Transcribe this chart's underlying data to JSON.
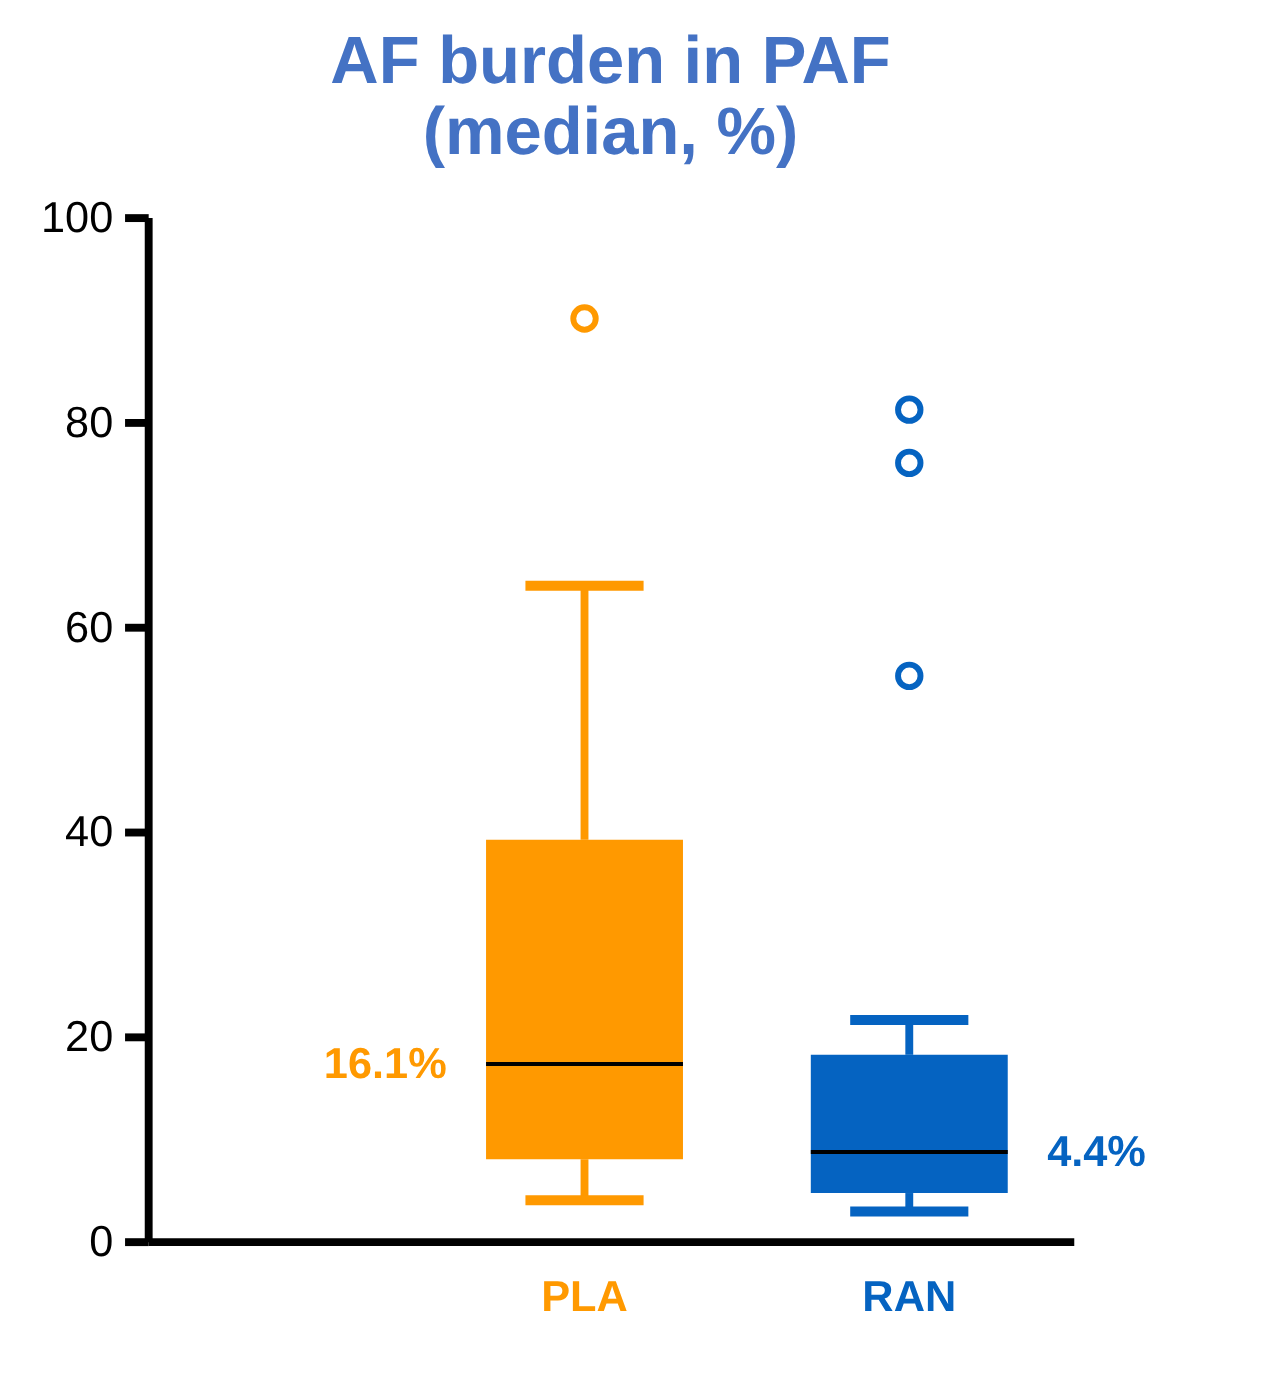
{
  "chart_data": {
    "type": "box",
    "title": [
      "AF burden in PAF",
      "(median, %)"
    ],
    "categories": [
      "PLA",
      "RAN"
    ],
    "colors": [
      "#ff9900",
      "#0563c1"
    ],
    "boxes": [
      {
        "low": 4.0,
        "q1": 8.0,
        "median": 17.3,
        "q3": 39.2,
        "high": 64.0,
        "outliers": [
          90.1
        ]
      },
      {
        "low": 2.9,
        "q1": 4.7,
        "median": 8.7,
        "q3": 18.2,
        "high": 21.6,
        "outliers": [
          81.2,
          76.0,
          55.2
        ]
      }
    ],
    "annotations": [
      "16.1%",
      "4.4%"
    ],
    "ylim": [
      0,
      100
    ],
    "yticks": [
      0,
      20,
      40,
      60,
      80,
      100
    ],
    "grid": false
  }
}
